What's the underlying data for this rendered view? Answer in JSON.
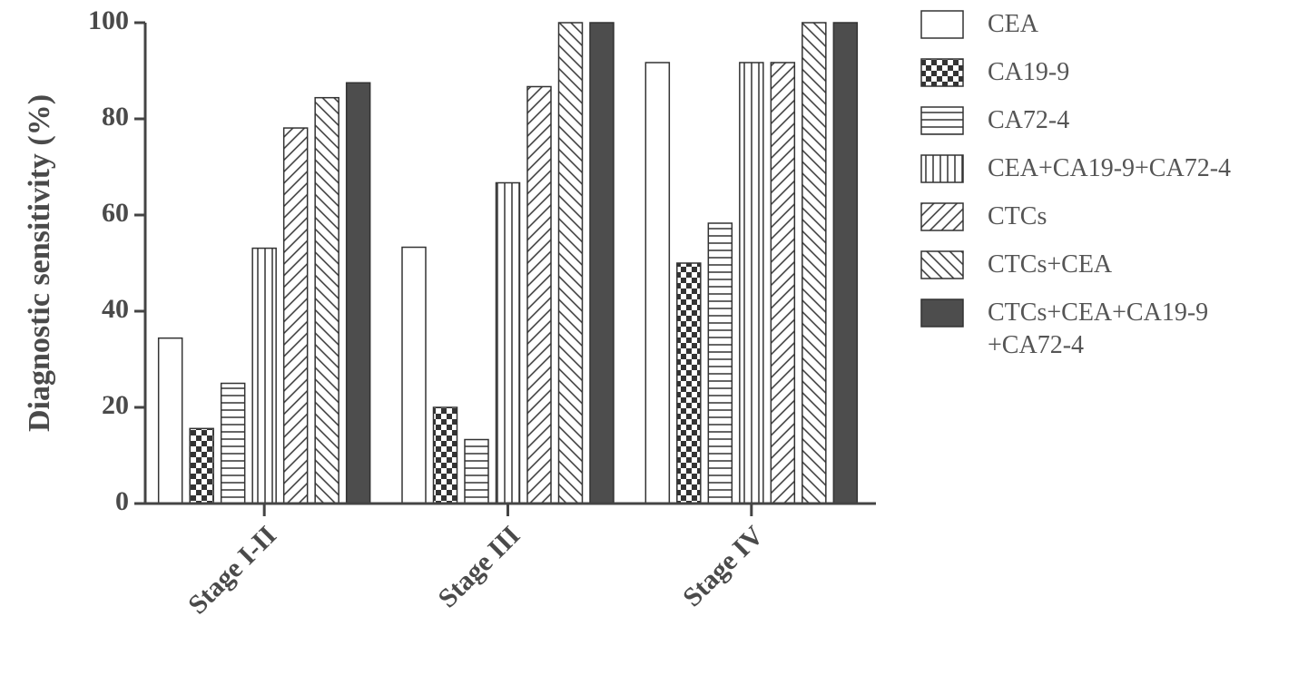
{
  "chart_data": {
    "type": "bar",
    "ylabel": "Diagnostic sensitivity (%)",
    "categories": [
      "Stage I-II",
      "Stage III",
      "Stage IV"
    ],
    "ylim": [
      0,
      100
    ],
    "yticks": [
      0,
      20,
      40,
      60,
      80,
      100
    ],
    "series": [
      {
        "name": "CEA",
        "color": "#ffffff",
        "pattern": "none",
        "values": [
          34.4,
          53.3,
          91.7
        ]
      },
      {
        "name": "CA19-9",
        "color": "#ffffff",
        "pattern": "checker",
        "values": [
          15.6,
          20,
          50
        ]
      },
      {
        "name": "CA72-4",
        "color": "#ffffff",
        "pattern": "horizontal",
        "values": [
          25,
          13.3,
          58.3
        ]
      },
      {
        "name": "CEA+CA19-9+CA72-4",
        "color": "#ffffff",
        "pattern": "vertical",
        "values": [
          53.1,
          66.7,
          91.7
        ]
      },
      {
        "name": "CTCs",
        "color": "#ffffff",
        "pattern": "diagonal-up",
        "values": [
          78.1,
          86.7,
          91.7
        ]
      },
      {
        "name": "CTCs+CEA",
        "color": "#ffffff",
        "pattern": "diagonal-down",
        "values": [
          84.4,
          100,
          100
        ]
      },
      {
        "name": "CTCs+CEA+CA19-9 +CA72-4",
        "color": "#4d4d4d",
        "pattern": "none",
        "values": [
          87.5,
          100,
          100
        ]
      }
    ]
  }
}
